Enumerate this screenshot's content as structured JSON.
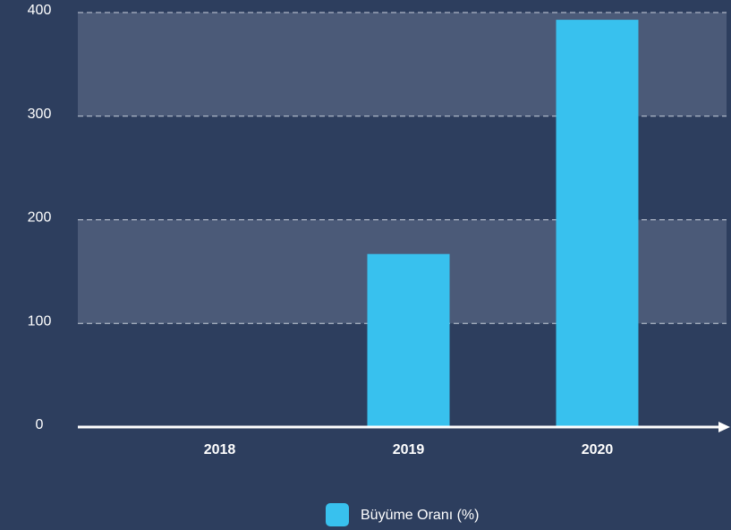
{
  "chart_data": {
    "type": "bar",
    "categories": [
      "2018",
      "2019",
      "2020"
    ],
    "values": [
      0,
      167,
      393
    ],
    "color": "#38c1ee",
    "series_name": "Büyüme Oranı (%)",
    "ylim": [
      0,
      400
    ],
    "yticks": [
      0,
      100,
      200,
      300,
      400
    ],
    "grid": true,
    "legend": "bottom"
  }
}
